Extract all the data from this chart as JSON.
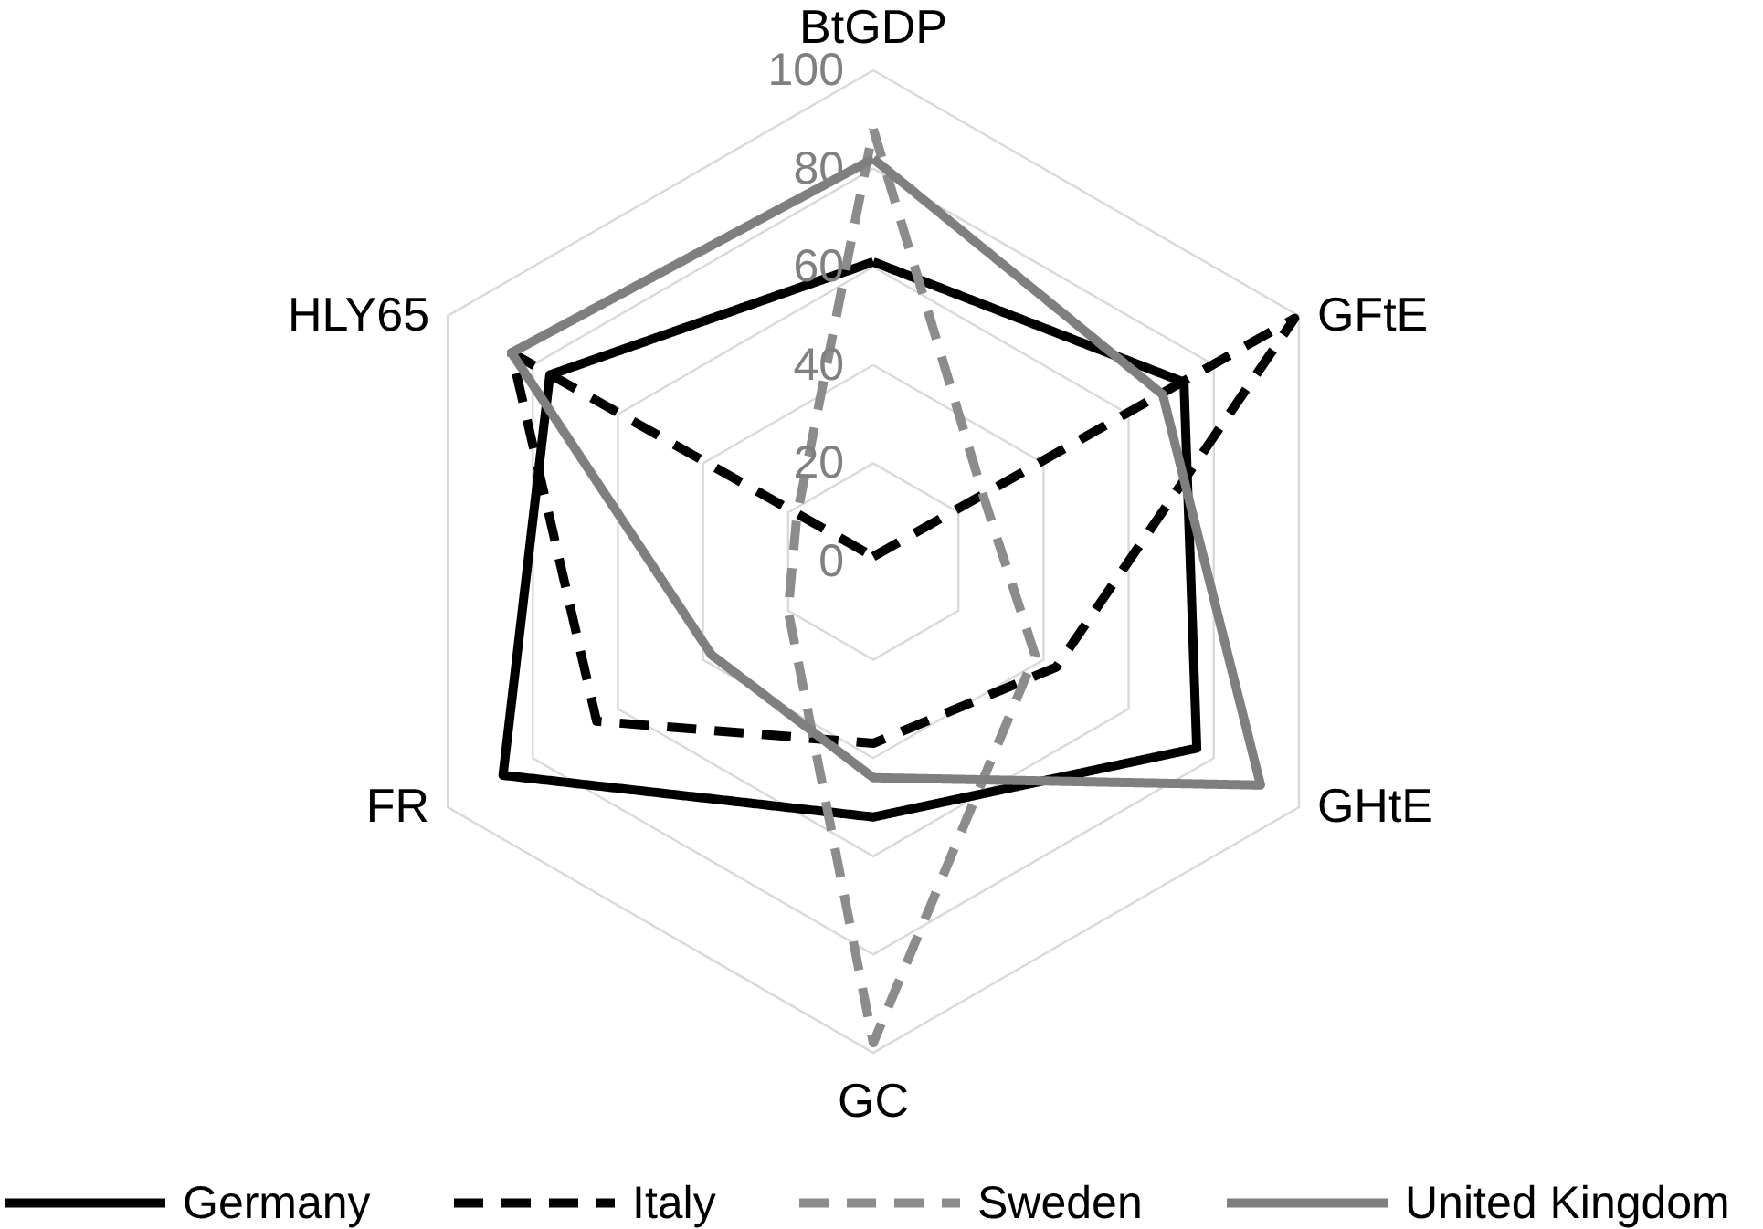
{
  "chart_data": {
    "type": "radar",
    "categories": [
      "BtGDP",
      "GFtE",
      "GHtE",
      "GC",
      "FR",
      "HLY65"
    ],
    "ylim": [
      0,
      100
    ],
    "yticks": [
      0,
      20,
      40,
      60,
      80,
      100
    ],
    "grid": true,
    "legend": "bottom",
    "series": [
      {
        "name": "Germany",
        "color": "#000000",
        "line_style": "solid",
        "values": [
          61,
          73,
          76,
          52,
          87,
          76
        ]
      },
      {
        "name": "Italy",
        "color": "#000000",
        "line_style": "dashed",
        "values": [
          1,
          99,
          43,
          37,
          65,
          85
        ]
      },
      {
        "name": "Sweden",
        "color": "#8c8c8c",
        "line_style": "dashed",
        "values": [
          88,
          26,
          38,
          98,
          20,
          18
        ]
      },
      {
        "name": "United Kingdom",
        "color": "#7f7f7f",
        "line_style": "solid",
        "values": [
          82,
          68,
          91,
          44,
          38,
          85
        ]
      }
    ]
  }
}
